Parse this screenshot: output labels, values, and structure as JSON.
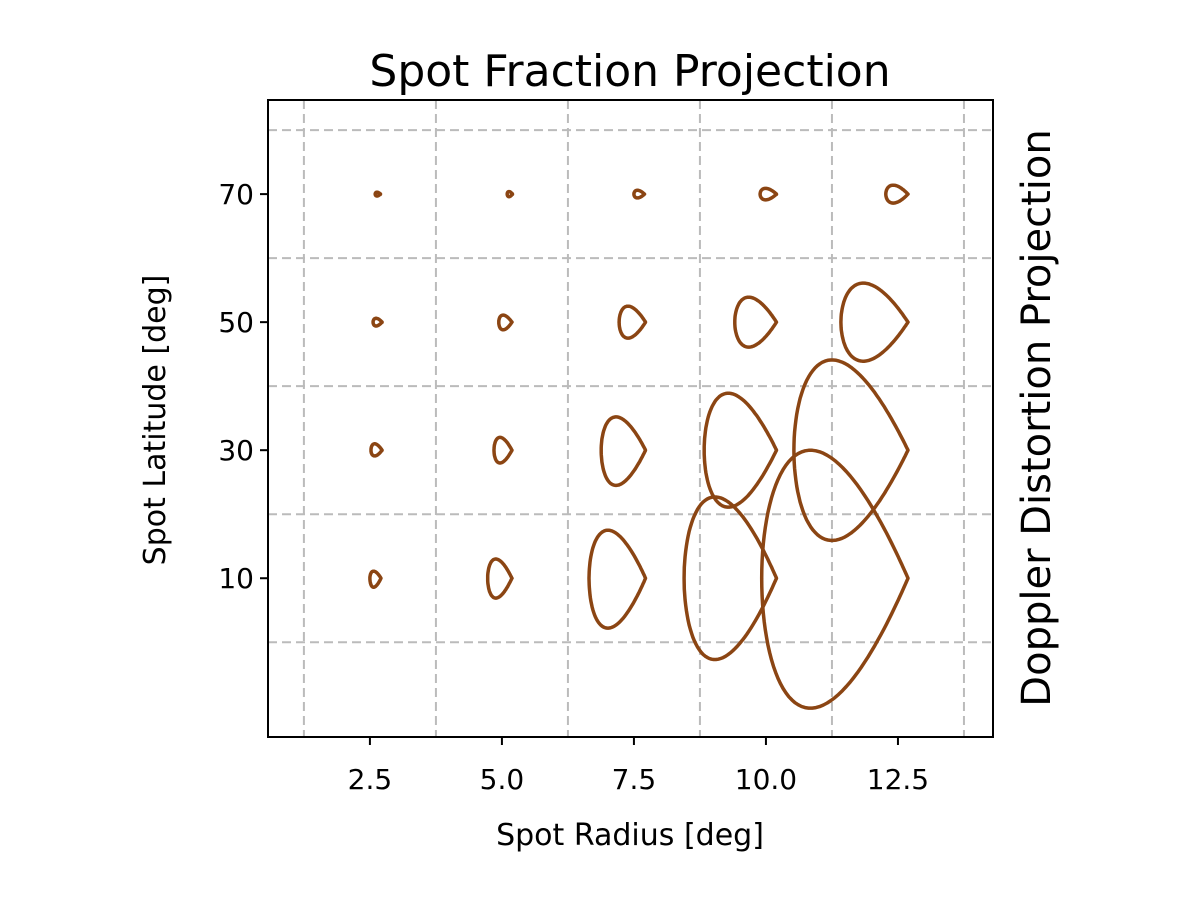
{
  "chart_data": {
    "type": "contour",
    "title": "Spot Fraction Projection",
    "right_label": "Doppler Distortion Projection",
    "xlabel": "Spot Radius [deg]",
    "ylabel": "Spot Latitude [deg]",
    "color": "#8b4513",
    "xlim": [
      0.57,
      14.3
    ],
    "ylim": [
      -14.8,
      84.7
    ],
    "xticks": [
      {
        "value": 2.5,
        "label": "2.5"
      },
      {
        "value": 5,
        "label": "5.0"
      },
      {
        "value": 7.5,
        "label": "7.5"
      },
      {
        "value": 10,
        "label": "10.0"
      },
      {
        "value": 12.5,
        "label": "12.5"
      }
    ],
    "yticks": [
      10,
      30,
      50,
      70
    ],
    "x_gridlines": [
      1.25,
      3.75,
      6.25,
      8.75,
      11.25,
      13.75
    ],
    "y_gridlines": [
      0,
      20,
      40,
      60,
      80
    ],
    "grid": true,
    "contours": [
      {
        "radius": 2.5,
        "latitude": 70,
        "x_range": [
          2.6,
          2.7
        ],
        "y_range": [
          69.7,
          70.3
        ]
      },
      {
        "radius": 5,
        "latitude": 70,
        "x_range": [
          5.1,
          5.2
        ],
        "y_range": [
          69.6,
          70.4
        ]
      },
      {
        "radius": 7.5,
        "latitude": 70,
        "x_range": [
          7.5,
          7.7
        ],
        "y_range": [
          69.4,
          70.6
        ]
      },
      {
        "radius": 10,
        "latitude": 70,
        "x_range": [
          9.89,
          10.2
        ],
        "y_range": [
          69.1,
          70.9
        ]
      },
      {
        "radius": 12.5,
        "latitude": 70,
        "x_range": [
          12.27,
          12.69
        ],
        "y_range": [
          68.6,
          71.4
        ]
      },
      {
        "radius": 2.5,
        "latitude": 50,
        "x_range": [
          2.56,
          2.73
        ],
        "y_range": [
          49.4,
          50.6
        ]
      },
      {
        "radius": 5,
        "latitude": 50,
        "x_range": [
          4.94,
          5.19
        ],
        "y_range": [
          48.8,
          51.1
        ]
      },
      {
        "radius": 7.5,
        "latitude": 50,
        "x_range": [
          7.22,
          7.72
        ],
        "y_range": [
          47.5,
          52.5
        ]
      },
      {
        "radius": 10,
        "latitude": 50,
        "x_range": [
          9.41,
          10.2
        ],
        "y_range": [
          46.1,
          53.9
        ]
      },
      {
        "radius": 12.5,
        "latitude": 50,
        "x_range": [
          11.42,
          12.69
        ],
        "y_range": [
          43.9,
          56.1
        ]
      },
      {
        "radius": 2.5,
        "latitude": 30,
        "x_range": [
          2.52,
          2.73
        ],
        "y_range": [
          29.1,
          31
        ]
      },
      {
        "radius": 5,
        "latitude": 30,
        "x_range": [
          4.85,
          5.19
        ],
        "y_range": [
          28,
          32
        ]
      },
      {
        "radius": 7.5,
        "latitude": 30,
        "x_range": [
          6.88,
          7.72
        ],
        "y_range": [
          24.5,
          35.2
        ]
      },
      {
        "radius": 10,
        "latitude": 30,
        "x_range": [
          8.83,
          10.2
        ],
        "y_range": [
          21.1,
          38.9
        ]
      },
      {
        "radius": 12.5,
        "latitude": 30,
        "x_range": [
          10.53,
          12.69
        ],
        "y_range": [
          15.9,
          44.1
        ]
      },
      {
        "radius": 2.5,
        "latitude": 10,
        "x_range": [
          2.5,
          2.71
        ],
        "y_range": [
          8.6,
          11.1
        ]
      },
      {
        "radius": 5,
        "latitude": 10,
        "x_range": [
          4.73,
          5.19
        ],
        "y_range": [
          6.9,
          13
        ]
      },
      {
        "radius": 7.5,
        "latitude": 10,
        "x_range": [
          6.65,
          7.72
        ],
        "y_range": [
          2.2,
          17.5
        ]
      },
      {
        "radius": 10,
        "latitude": 10,
        "x_range": [
          8.45,
          10.2
        ],
        "y_range": [
          -2.7,
          22.7
        ]
      },
      {
        "radius": 12.5,
        "latitude": 10,
        "x_range": [
          9.92,
          12.69
        ],
        "y_range": [
          -10.3,
          30
        ]
      }
    ]
  }
}
